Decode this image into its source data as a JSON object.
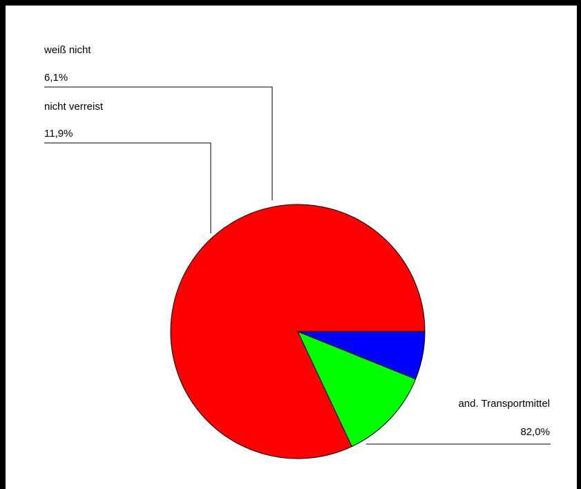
{
  "chart_data": {
    "type": "pie",
    "title": "",
    "start_angle_deg": 0,
    "direction": "counterclockwise",
    "slices": [
      {
        "label": "and. Transportmittel",
        "value": 82.0,
        "display": "82,0%",
        "color": "#ff0000"
      },
      {
        "label": "nicht verreist",
        "value": 11.9,
        "display": "11,9%",
        "color": "#00ff00"
      },
      {
        "label": "weiß nicht",
        "value": 6.1,
        "display": "6,1%",
        "color": "#0000ff"
      }
    ]
  }
}
